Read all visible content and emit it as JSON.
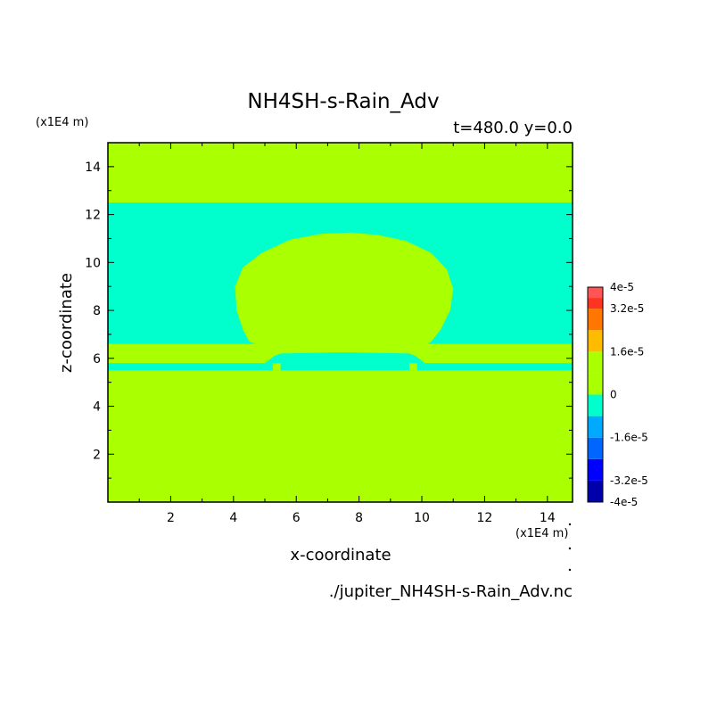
{
  "chart_data": {
    "type": "heatmap",
    "title": "NH4SH-s-Rain_Adv",
    "subtitle": "t=480.0 y=0.0",
    "xlabel": "x-coordinate",
    "ylabel": "z-coordinate",
    "x_unit": "(x1E4 m)",
    "y_unit": "(x1E4 m)",
    "source": "./jupiter_NH4SH-s-Rain_Adv.nc",
    "xlim": [
      0,
      14.8
    ],
    "ylim": [
      0,
      15
    ],
    "xticks": [
      2,
      4,
      6,
      8,
      10,
      12,
      14
    ],
    "yticks": [
      2,
      4,
      6,
      8,
      10,
      12,
      14
    ],
    "colors": {
      "zero": "#aaff00",
      "neg_small": "#00ffcc"
    },
    "regions": [
      {
        "value": "0",
        "x": [
          0,
          14.8
        ],
        "z": [
          0,
          15
        ]
      },
      {
        "value": "-1.6e-5..0",
        "x": [
          0,
          14.8
        ],
        "z": [
          6.6,
          12.5
        ]
      },
      {
        "value": "0",
        "x": [
          0,
          14.8
        ],
        "z": [
          6.45,
          6.55
        ]
      },
      {
        "value": "-1.6e-5..0",
        "x": [
          0,
          14.8
        ],
        "z": [
          5.5,
          5.8
        ]
      }
    ],
    "colorbar": {
      "labels": [
        "4e-5",
        "3.2e-5",
        "1.6e-5",
        "0",
        "-1.6e-5",
        "-3.2e-5",
        "-4e-5"
      ],
      "levels": [
        {
          "lo": -4e-05,
          "hi": -3.2e-05,
          "color": "#0000aa"
        },
        {
          "lo": -3.2e-05,
          "hi": -2.4e-05,
          "color": "#0000ff"
        },
        {
          "lo": -2.4e-05,
          "hi": -1.6e-05,
          "color": "#0066ff"
        },
        {
          "lo": -1.6e-05,
          "hi": -8e-06,
          "color": "#00aaff"
        },
        {
          "lo": -8e-06,
          "hi": 0,
          "color": "#00ffcc"
        },
        {
          "lo": 0,
          "hi": 8e-06,
          "color": "#aaff00"
        },
        {
          "lo": 8e-06,
          "hi": 1.6e-05,
          "color": "#aaff00"
        },
        {
          "lo": 1.6e-05,
          "hi": 2.4e-05,
          "color": "#ffbb00"
        },
        {
          "lo": 2.4e-05,
          "hi": 3.2e-05,
          "color": "#ff7700"
        },
        {
          "lo": 3.2e-05,
          "hi": 3.6e-05,
          "color": "#ff3322"
        },
        {
          "lo": 3.6e-05,
          "hi": 4e-05,
          "color": "#ff5555"
        }
      ]
    }
  }
}
